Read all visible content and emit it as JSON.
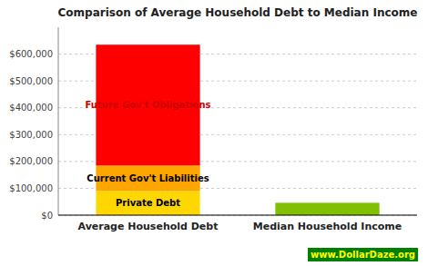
{
  "chart_data": {
    "type": "bar",
    "stacked": true,
    "title": "Comparison of Average Household Debt to Median Income",
    "categories": [
      "Average Household Debt",
      "Median Household Income"
    ],
    "series": [
      {
        "name": "Private Debt",
        "color": "#FFD700",
        "values": [
          90000,
          null
        ]
      },
      {
        "name": "Current Gov't Liabilities",
        "color": "#FFA500",
        "values": [
          95000,
          null
        ]
      },
      {
        "name": "Future Gov't Obligations",
        "color": "#FF0000",
        "values": [
          450000,
          null
        ]
      },
      {
        "color": "#80C000",
        "values": [
          null,
          46000
        ]
      }
    ],
    "ylim": [
      0,
      700000
    ],
    "yticks": [
      {
        "value": 0,
        "label": "$0"
      },
      {
        "value": 100000,
        "label": "$100,000"
      },
      {
        "value": 200000,
        "label": "$200,000"
      },
      {
        "value": 300000,
        "label": "$300,000"
      },
      {
        "value": 400000,
        "label": "$400,000"
      },
      {
        "value": 500000,
        "label": "$500,000"
      },
      {
        "value": 600000,
        "label": "$600,000"
      }
    ],
    "grid": true,
    "annotations": [
      "www.DollarDaze.org"
    ]
  }
}
